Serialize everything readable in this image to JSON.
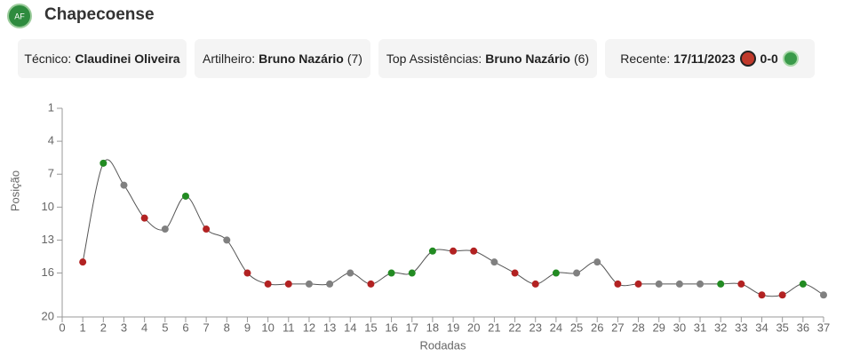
{
  "header": {
    "title": "Chapecoense"
  },
  "cards": [
    {
      "label": "Técnico:",
      "value": "Claudinei Oliveira"
    },
    {
      "label": "Artilheiro:",
      "value": "Bruno Nazário",
      "extra": "(7)"
    },
    {
      "label": "Top Assistências:",
      "value": "Bruno Nazário",
      "extra": "(6)"
    },
    {
      "label": "Recente:",
      "value": "17/11/2023",
      "score": "0-0"
    }
  ],
  "chart_data": {
    "type": "line",
    "x_label": "Rodadas",
    "y_label": "Posição",
    "x": [
      1,
      2,
      3,
      4,
      5,
      6,
      7,
      8,
      9,
      10,
      11,
      12,
      13,
      14,
      15,
      16,
      17,
      18,
      19,
      20,
      21,
      22,
      23,
      24,
      25,
      26,
      27,
      28,
      29,
      30,
      31,
      32,
      33,
      34,
      35,
      36,
      37
    ],
    "values": [
      15,
      6,
      8,
      11,
      12,
      9,
      12,
      13,
      16,
      17,
      17,
      17,
      17,
      16,
      17,
      16,
      16,
      14,
      14,
      14,
      15,
      16,
      17,
      16,
      16,
      15,
      17,
      17,
      17,
      17,
      17,
      17,
      17,
      18,
      18,
      17,
      18
    ],
    "point_colors": [
      "#b22222",
      "#228b22",
      "#808080",
      "#b22222",
      "#808080",
      "#228b22",
      "#b22222",
      "#808080",
      "#b22222",
      "#b22222",
      "#b22222",
      "#808080",
      "#808080",
      "#808080",
      "#b22222",
      "#228b22",
      "#228b22",
      "#228b22",
      "#b22222",
      "#b22222",
      "#808080",
      "#b22222",
      "#b22222",
      "#228b22",
      "#808080",
      "#808080",
      "#b22222",
      "#b22222",
      "#808080",
      "#808080",
      "#808080",
      "#228b22",
      "#b22222",
      "#b22222",
      "#b22222",
      "#228b22",
      "#808080"
    ],
    "line_color": "#555555",
    "xlim": [
      0,
      37
    ],
    "xticks": [
      0,
      1,
      2,
      3,
      4,
      5,
      6,
      7,
      8,
      9,
      10,
      11,
      12,
      13,
      14,
      15,
      16,
      17,
      18,
      19,
      20,
      21,
      22,
      23,
      24,
      25,
      26,
      27,
      28,
      29,
      30,
      31,
      32,
      33,
      34,
      35,
      36,
      37
    ],
    "ylim": [
      1,
      20
    ],
    "yticks": [
      1,
      4,
      7,
      10,
      13,
      16,
      20
    ],
    "y_inverted": true
  }
}
